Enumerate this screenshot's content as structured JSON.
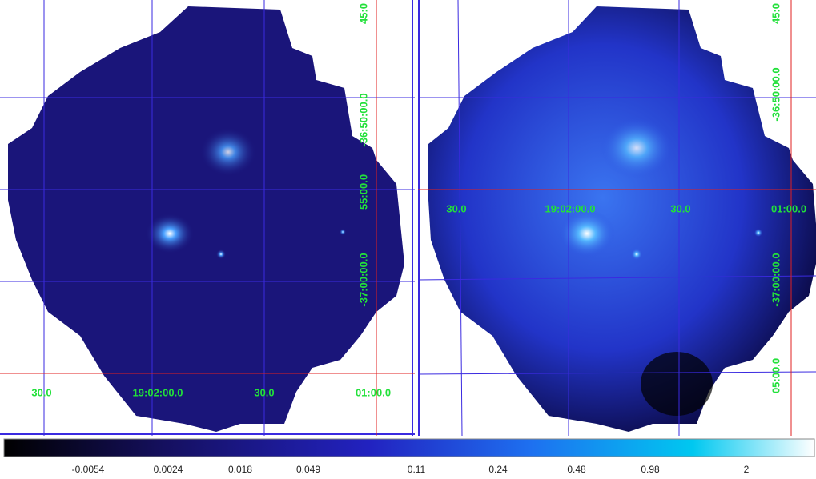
{
  "panels": [
    {
      "y_labels": [
        "45:0",
        "-36:50:00.0",
        "55:00.0",
        "-37:00:00.0"
      ],
      "x_labels": [
        "30.0",
        "19:02:00.0",
        "30.0",
        "01:00.0"
      ]
    },
    {
      "y_labels": [
        "45:0",
        "-36:50:00.0",
        "-37:00:00.0",
        "05:00.0"
      ],
      "x_labels": [
        "30.0",
        "19:02:00.0",
        "30.0",
        "01:00.0"
      ]
    }
  ],
  "colorbar": {
    "labels": [
      "-0.0054",
      "0.0024",
      "0.018",
      "0.049",
      "0.11",
      "0.24",
      "0.48",
      "0.98",
      "2"
    ]
  }
}
